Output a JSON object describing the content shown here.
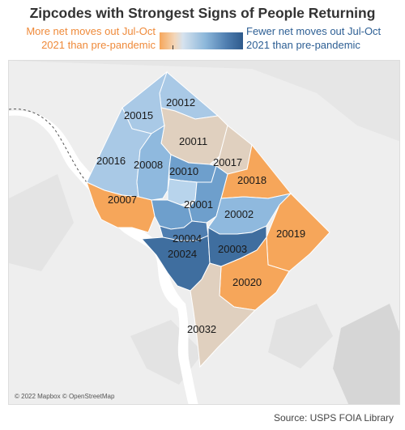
{
  "title": "Zipcodes with Strongest Signs of People Returning",
  "legend": {
    "left_label": "More net moves out Jul-Oct 2021 than pre-pandemic",
    "right_label": "Fewer net moves out Jul-Oct 2021 than pre-pandemic",
    "colors": {
      "orange": "#f6a65a",
      "tan": "#e0d0bf",
      "light_blue": "#a9c9e6",
      "mid_blue": "#6e9fcc",
      "dark_blue": "#3f6e9f"
    }
  },
  "zipcodes": [
    {
      "zip": "20012",
      "shade": "light_blue"
    },
    {
      "zip": "20015",
      "shade": "light_blue"
    },
    {
      "zip": "20011",
      "shade": "tan"
    },
    {
      "zip": "20016",
      "shade": "light_blue"
    },
    {
      "zip": "20008",
      "shade": "light_blue"
    },
    {
      "zip": "20010",
      "shade": "mid_blue"
    },
    {
      "zip": "20017",
      "shade": "tan"
    },
    {
      "zip": "20018",
      "shade": "orange"
    },
    {
      "zip": "20007",
      "shade": "orange"
    },
    {
      "zip": "20001",
      "shade": "mid_blue"
    },
    {
      "zip": "20002",
      "shade": "light_blue"
    },
    {
      "zip": "20019",
      "shade": "orange"
    },
    {
      "zip": "20004",
      "shade": "mid_blue"
    },
    {
      "zip": "20024",
      "shade": "dark_blue"
    },
    {
      "zip": "20003",
      "shade": "dark_blue"
    },
    {
      "zip": "20020",
      "shade": "orange"
    },
    {
      "zip": "20032",
      "shade": "tan"
    }
  ],
  "attribution": "© 2022 Mapbox © OpenStreetMap",
  "source": "Source: USPS FOIA Library"
}
